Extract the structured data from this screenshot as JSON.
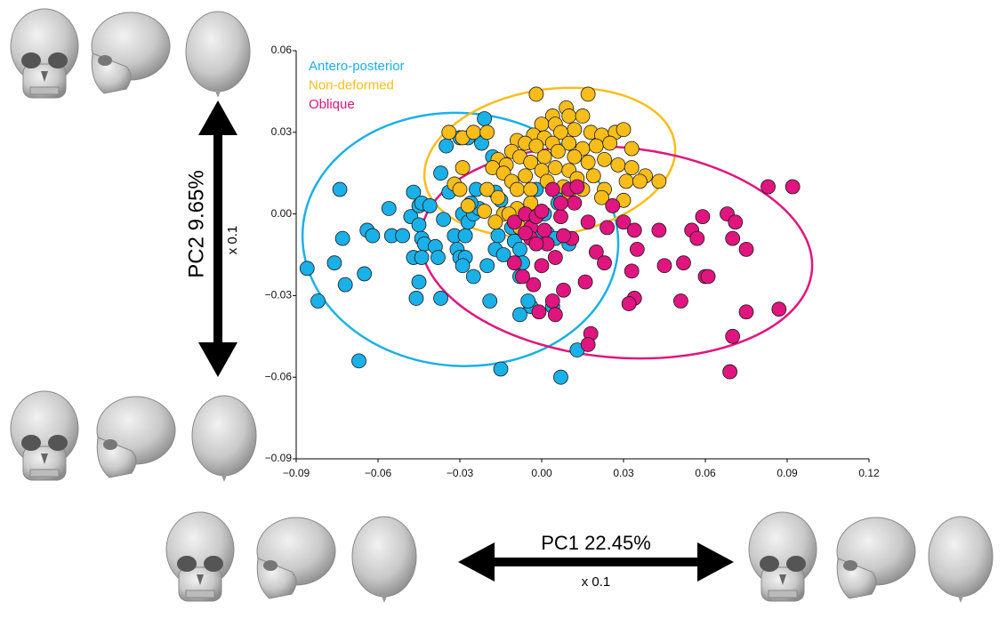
{
  "chart_data": {
    "type": "scatter",
    "annotations": {
      "pc2": "PC2  9.65%",
      "pc2_scale": "x 0.1",
      "pc1": "PC1 22.45%",
      "pc1_scale": "x 0.1"
    },
    "xlim": [
      -0.09,
      0.12
    ],
    "xticks": [
      {
        "value": -0.09,
        "label": "−0.09"
      },
      {
        "value": -0.06,
        "label": "−0.06"
      },
      {
        "value": -0.03,
        "label": "−0.03"
      },
      {
        "value": 0,
        "label": "0.00"
      },
      0.03,
      0.06,
      0.09,
      0.12
    ],
    "ylim": [
      -0.09,
      0.06
    ],
    "yticks": [
      {
        "value": -0.09,
        "label": "−0.09"
      },
      {
        "value": -0.06,
        "label": "−0.06"
      },
      {
        "value": -0.03,
        "label": "−0.03"
      },
      {
        "value": 0,
        "label": "0.00"
      },
      0.03,
      0.06
    ],
    "legend": "upper left",
    "series": [
      {
        "name": "Antero-posterior",
        "color": "#1ab0e8",
        "x": [
          -0.086,
          -0.082,
          -0.074,
          -0.073,
          -0.072,
          -0.076,
          -0.067,
          -0.064,
          -0.065,
          -0.062,
          -0.056,
          -0.055,
          -0.051,
          -0.048,
          -0.047,
          -0.045,
          -0.044,
          -0.041,
          -0.045,
          -0.047,
          -0.044,
          -0.043,
          -0.044,
          -0.039,
          -0.038,
          -0.035,
          -0.037,
          -0.036,
          -0.034,
          -0.032,
          -0.031,
          -0.03,
          -0.028,
          -0.029,
          -0.028,
          -0.029,
          -0.027,
          -0.025,
          -0.023,
          -0.026,
          -0.024,
          -0.03,
          -0.027,
          -0.022,
          -0.021,
          -0.018,
          -0.017,
          -0.015,
          -0.016,
          -0.017,
          -0.02,
          -0.014,
          -0.01,
          -0.008,
          -0.007,
          -0.008,
          -0.004,
          -0.005,
          -0.008,
          0.004,
          0.0,
          0.002,
          0.005,
          0.01,
          0.006,
          0.006,
          -0.002,
          0.001,
          -0.037,
          -0.046,
          -0.019,
          -0.025,
          -0.015,
          0.013,
          0.007,
          -0.011,
          -0.045
        ],
        "values": [
          -0.02,
          -0.032,
          0.009,
          -0.009,
          -0.026,
          -0.018,
          -0.054,
          -0.006,
          -0.022,
          -0.008,
          0.002,
          -0.008,
          -0.008,
          -0.001,
          0.008,
          0.003,
          0.004,
          0.003,
          -0.004,
          -0.016,
          -0.009,
          -0.011,
          -0.016,
          -0.012,
          -0.016,
          0.025,
          0.015,
          -0.002,
          0.008,
          -0.008,
          -0.013,
          -0.016,
          -0.016,
          -0.019,
          -0.008,
          0.0,
          -0.003,
          0.0,
          0.002,
          0.004,
          0.009,
          0.028,
          0.028,
          0.026,
          0.035,
          0.021,
          0.008,
          0.005,
          -0.008,
          -0.013,
          -0.019,
          -0.015,
          -0.01,
          -0.013,
          -0.018,
          -0.023,
          -0.034,
          -0.032,
          -0.037,
          -0.034,
          -0.008,
          -0.007,
          -0.009,
          -0.011,
          0.004,
          0.008,
          0.009,
          0.0,
          -0.031,
          -0.031,
          -0.032,
          -0.023,
          -0.057,
          -0.05,
          -0.06,
          -0.005,
          -0.025
        ]
      },
      {
        "name": "Non-deformed",
        "color": "#f9bd1a",
        "x": [
          -0.002,
          0.017,
          0.009,
          0.01,
          0.004,
          0.015,
          0.0,
          0.005,
          0.012,
          -0.034,
          -0.029,
          -0.025,
          -0.02,
          -0.009,
          -0.003,
          0.001,
          0.007,
          0.018,
          0.022,
          0.027,
          0.03,
          -0.011,
          -0.006,
          -0.002,
          0.004,
          0.01,
          0.015,
          0.02,
          0.025,
          0.033,
          -0.016,
          -0.013,
          -0.008,
          -0.004,
          0.001,
          0.006,
          0.012,
          0.017,
          0.023,
          0.028,
          0.033,
          0.038,
          0.043,
          -0.029,
          -0.032,
          -0.03,
          -0.018,
          -0.014,
          -0.011,
          -0.006,
          0.0,
          0.005,
          0.01,
          0.013,
          0.019,
          0.023,
          0.031,
          0.036,
          -0.02,
          -0.016,
          -0.009,
          -0.004,
          0.002,
          0.008,
          0.015,
          0.022,
          0.03,
          -0.027,
          -0.021,
          -0.014,
          -0.009,
          -0.004,
          0.01,
          -0.017,
          -0.012,
          -0.008
        ],
        "values": [
          0.044,
          0.044,
          0.039,
          0.036,
          0.036,
          0.036,
          0.033,
          0.033,
          0.031,
          0.03,
          0.028,
          0.03,
          0.03,
          0.027,
          0.029,
          0.028,
          0.03,
          0.03,
          0.029,
          0.03,
          0.031,
          0.023,
          0.026,
          0.025,
          0.026,
          0.026,
          0.024,
          0.025,
          0.026,
          0.024,
          0.02,
          0.018,
          0.021,
          0.019,
          0.021,
          0.023,
          0.021,
          0.019,
          0.02,
          0.018,
          0.017,
          0.014,
          0.012,
          0.017,
          0.011,
          0.009,
          0.017,
          0.015,
          0.012,
          0.014,
          0.016,
          0.017,
          0.016,
          0.013,
          0.014,
          0.009,
          0.012,
          0.012,
          0.009,
          0.006,
          0.009,
          0.009,
          0.012,
          0.01,
          0.009,
          0.006,
          0.005,
          0.003,
          0.001,
          0.0,
          0.002,
          0.004,
          0.008,
          -0.003,
          0.0,
          -0.005
        ]
      },
      {
        "name": "Oblique",
        "color": "#e0157f",
        "x": [
          -0.01,
          -0.006,
          -0.004,
          -0.002,
          0.0,
          0.004,
          0.007,
          0.01,
          0.012,
          0.013,
          0.017,
          0.007,
          0.001,
          -0.004,
          0.002,
          0.005,
          0.0,
          -0.003,
          -0.007,
          -0.01,
          0.004,
          0.008,
          -0.001,
          0.005,
          0.016,
          0.018,
          0.017,
          0.024,
          0.026,
          0.03,
          0.034,
          0.035,
          0.033,
          0.034,
          0.032,
          0.043,
          0.045,
          0.052,
          0.055,
          0.059,
          0.057,
          0.06,
          0.061,
          0.051,
          0.068,
          0.071,
          0.07,
          0.075,
          0.075,
          0.07,
          0.069,
          0.083,
          0.092,
          0.087,
          0.011,
          -0.002,
          0.008,
          0.02,
          0.023,
          -0.006
        ],
        "values": [
          -0.003,
          0.0,
          -0.005,
          -0.001,
          0.001,
          0.009,
          -0.001,
          0.009,
          0.004,
          0.01,
          -0.003,
          0.004,
          -0.006,
          -0.009,
          -0.011,
          -0.016,
          -0.019,
          -0.026,
          -0.023,
          -0.018,
          -0.032,
          -0.028,
          -0.036,
          -0.037,
          -0.025,
          -0.044,
          -0.048,
          -0.005,
          0.003,
          -0.003,
          -0.006,
          -0.013,
          -0.021,
          -0.031,
          -0.033,
          -0.006,
          -0.019,
          -0.018,
          -0.006,
          -0.001,
          -0.009,
          -0.023,
          -0.023,
          -0.032,
          0.0,
          -0.003,
          -0.009,
          -0.013,
          -0.036,
          -0.045,
          -0.058,
          0.01,
          0.01,
          -0.035,
          -0.009,
          -0.011,
          -0.008,
          -0.014,
          -0.018,
          -0.007
        ]
      }
    ]
  }
}
